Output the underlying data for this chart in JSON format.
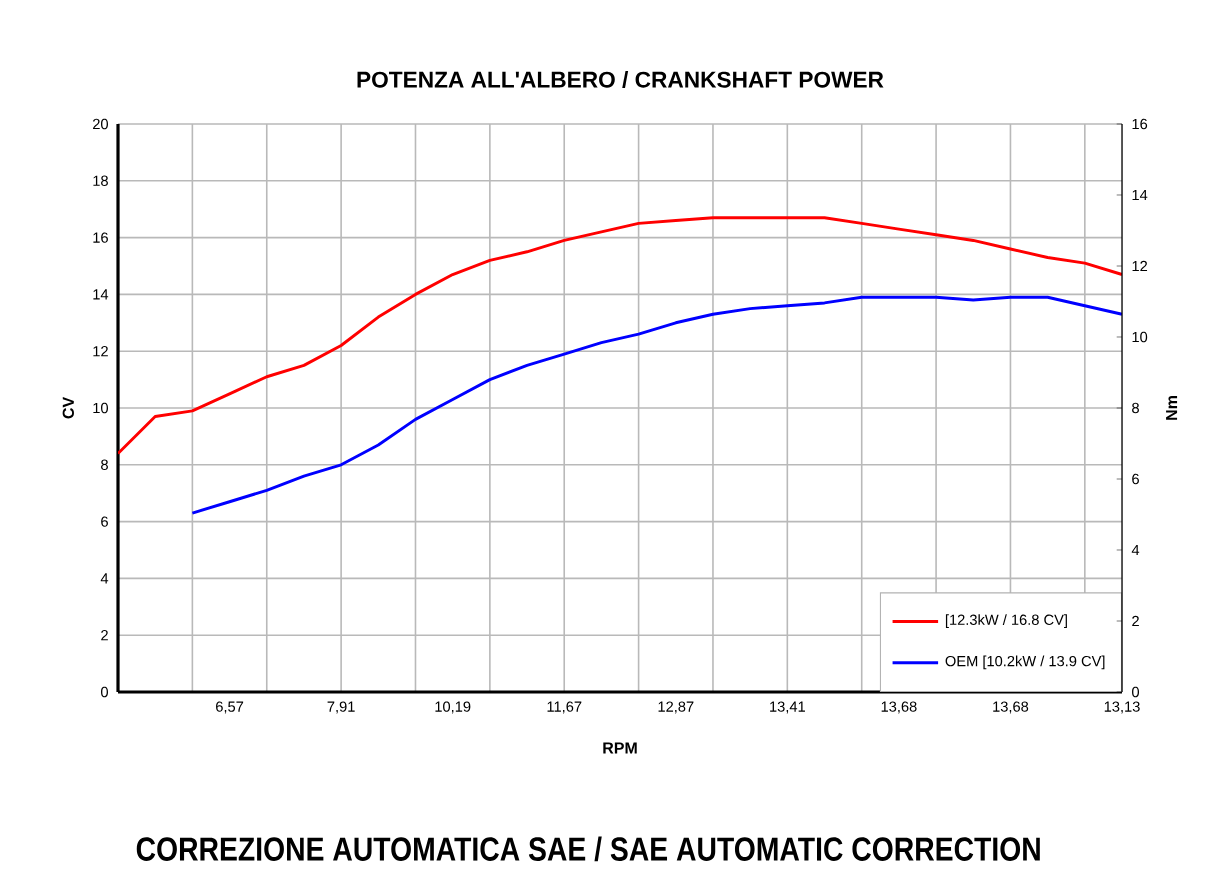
{
  "chart_data": {
    "type": "line",
    "title": "POTENZA ALL'ALBERO / CRANKSHAFT POWER",
    "xlabel": "RPM",
    "ylabel": "CV",
    "y2label": "Nm",
    "categories": [
      null,
      null,
      null,
      "6,57",
      null,
      null,
      "7,91",
      null,
      null,
      "10,19",
      null,
      null,
      "11,67",
      null,
      null,
      "12,87",
      null,
      null,
      "13,41",
      null,
      null,
      "13,68",
      null,
      null,
      "13,68",
      null,
      null,
      "13,13"
    ],
    "series": [
      {
        "name": "[12.3kW / 16.8 CV]",
        "color": "#ff0000",
        "values": [
          8.4,
          9.7,
          9.9,
          10.5,
          11.1,
          11.5,
          12.2,
          13.2,
          14.0,
          14.7,
          15.2,
          15.5,
          15.9,
          16.2,
          16.5,
          16.6,
          16.7,
          16.7,
          16.7,
          16.7,
          16.5,
          16.3,
          16.1,
          15.9,
          15.6,
          15.3,
          15.1,
          14.7
        ]
      },
      {
        "name": "OEM [10.2kW / 13.9 CV]",
        "color": "#0000ff",
        "values": [
          null,
          null,
          6.3,
          6.7,
          7.1,
          7.6,
          8.0,
          8.7,
          9.6,
          10.3,
          11.0,
          11.5,
          11.9,
          12.3,
          12.6,
          13.0,
          13.3,
          13.5,
          13.6,
          13.7,
          13.9,
          13.9,
          13.9,
          13.8,
          13.9,
          13.9,
          13.6,
          13.3
        ]
      }
    ],
    "ylim": [
      0,
      20
    ],
    "yticks": [
      0,
      2,
      4,
      6,
      8,
      10,
      12,
      14,
      16,
      18,
      20
    ],
    "y2lim": [
      0,
      16
    ],
    "y2ticks": [
      0,
      2,
      4,
      6,
      8,
      10,
      12,
      14,
      16
    ],
    "grid": true,
    "legend": "bottom right",
    "line_style": "solid",
    "annotations": [
      "CORREZIONE AUTOMATICA SAE / SAE AUTOMATIC CORRECTION"
    ]
  }
}
